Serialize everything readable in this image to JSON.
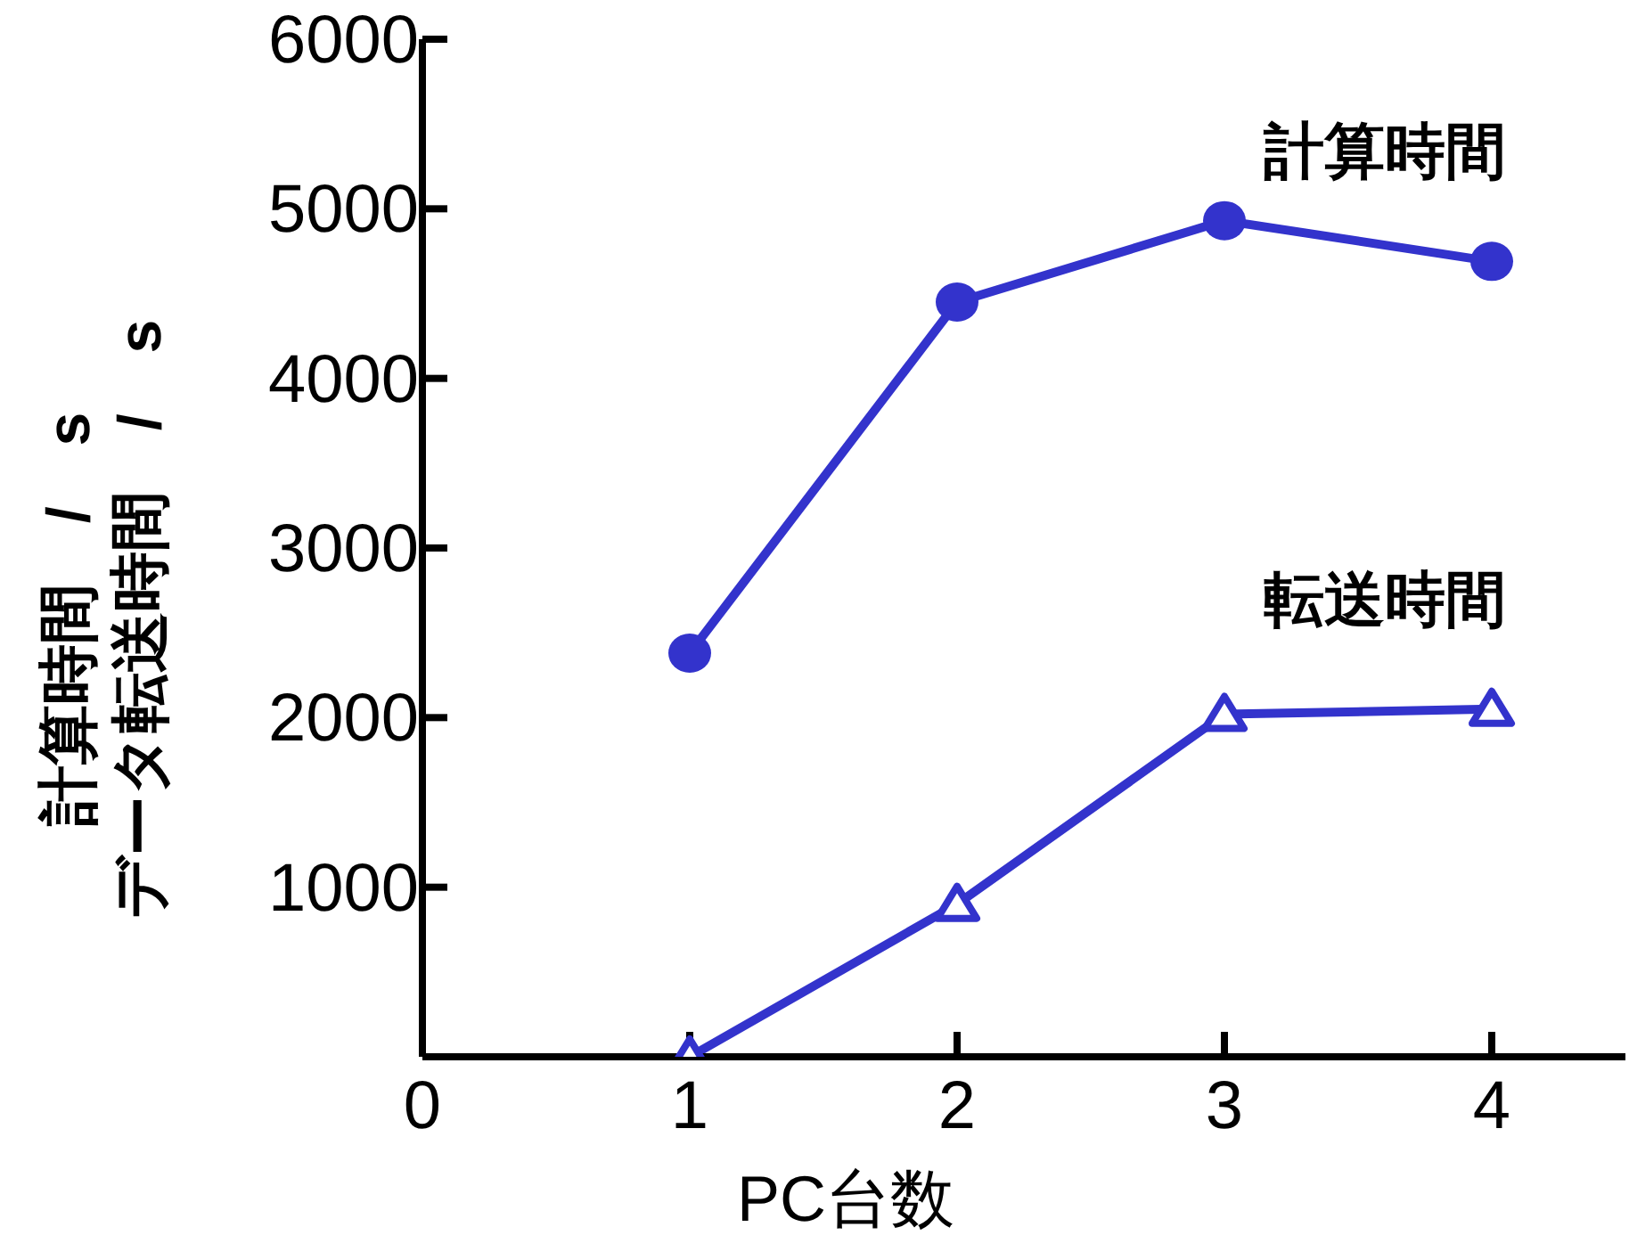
{
  "chart_data": {
    "type": "line",
    "xlabel": "PC台数",
    "ylabel": "計算時間　/　s\nデータ転送時間　/　s",
    "xlim": [
      0,
      4.5
    ],
    "xticks": [
      0,
      1,
      2,
      3,
      4
    ],
    "ylim": [
      0,
      6000
    ],
    "yticks": [
      1000,
      2000,
      3000,
      4000,
      5000,
      6000
    ],
    "grid": false,
    "legend": false,
    "series": [
      {
        "name": "計算時間",
        "color": "#3333cc",
        "marker": "circle",
        "x": [
          1,
          2,
          3,
          4
        ],
        "values": [
          2380,
          4450,
          4930,
          4690
        ]
      },
      {
        "name": "転送時間",
        "color": "#3333cc",
        "marker": "triangle",
        "x": [
          1,
          2,
          3,
          4
        ],
        "values": [
          0,
          900,
          2020,
          2050
        ]
      }
    ]
  }
}
